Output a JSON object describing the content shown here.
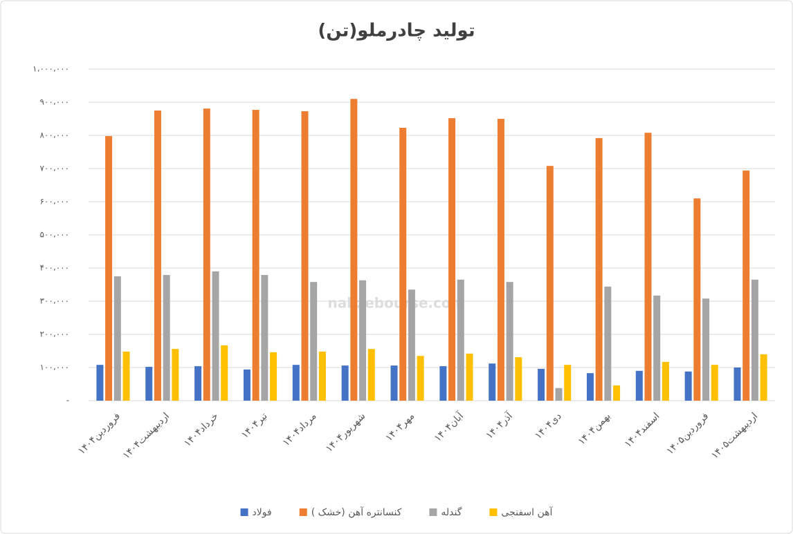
{
  "chart_data": {
    "type": "bar",
    "title": "تولید چادرملو(تن)",
    "watermark": "nabzebourse.com",
    "categories": [
      "فروردین۱۴۰۴",
      "اردیبهشت۱۴۰۴",
      "خرداد۱۴۰۴",
      "تیر۱۴۰۴",
      "مرداد۱۴۰۴",
      "شهریور۱۴۰۴",
      "مهر۱۴۰۴",
      "آبان۱۴۰۴",
      "آذر۱۴۰۴",
      "دی۱۴۰۴",
      "بهمن۱۴۰۴",
      "اسفند۱۴۰۴",
      "فروردین۱۴۰۵",
      "اردیبهشت۱۴۰۵"
    ],
    "series": [
      {
        "name": "فولاد",
        "color": "#4472c4",
        "values": [
          108000,
          102000,
          104000,
          94000,
          108000,
          106000,
          106000,
          104000,
          112000,
          96000,
          83000,
          90000,
          88000,
          100000
        ]
      },
      {
        "name": "کنسانتره آهن (خشک )",
        "color": "#ed7d31",
        "values": [
          798000,
          875000,
          881000,
          877000,
          873000,
          910000,
          823000,
          852000,
          850000,
          708000,
          792000,
          808000,
          610000,
          694000
        ]
      },
      {
        "name": "گندله",
        "color": "#a5a5a5",
        "values": [
          375000,
          379000,
          390000,
          379000,
          358000,
          363000,
          335000,
          365000,
          358000,
          38000,
          344000,
          317000,
          308000,
          365000
        ]
      },
      {
        "name": "آهن اسفنجی",
        "color": "#ffc000",
        "values": [
          148000,
          156000,
          167000,
          146000,
          148000,
          156000,
          135000,
          142000,
          131000,
          108000,
          46000,
          117000,
          108000,
          140000
        ]
      }
    ],
    "ylim": [
      0,
      1000000
    ],
    "yticks": [
      {
        "value": 0,
        "label": "-"
      },
      {
        "value": 100000,
        "label": "۱۰۰،۰۰۰"
      },
      {
        "value": 200000,
        "label": "۲۰۰،۰۰۰"
      },
      {
        "value": 300000,
        "label": "۳۰۰،۰۰۰"
      },
      {
        "value": 400000,
        "label": "۴۰۰،۰۰۰"
      },
      {
        "value": 500000,
        "label": "۵۰۰،۰۰۰"
      },
      {
        "value": 600000,
        "label": "۶۰۰،۰۰۰"
      },
      {
        "value": 700000,
        "label": "۷۰۰،۰۰۰"
      },
      {
        "value": 800000,
        "label": "۸۰۰،۰۰۰"
      },
      {
        "value": 900000,
        "label": "۹۰۰،۰۰۰"
      },
      {
        "value": 1000000,
        "label": "۱،۰۰۰،۰۰۰"
      }
    ],
    "grid": true,
    "legend": "bottom"
  }
}
